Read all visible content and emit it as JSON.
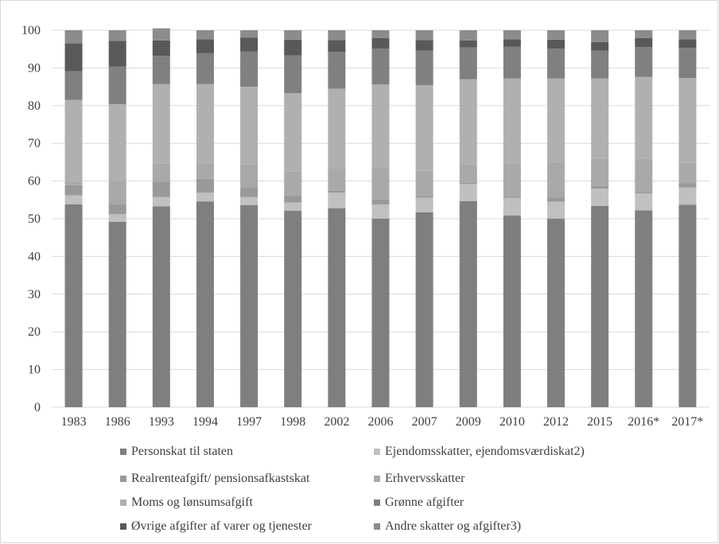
{
  "chart_data": {
    "type": "bar",
    "stacked": true,
    "categories": [
      "1983",
      "1986",
      "1993",
      "1994",
      "1997",
      "1998",
      "2002",
      "2006",
      "2007",
      "2009",
      "2010",
      "2012",
      "2015",
      "2016*",
      "2017*"
    ],
    "ylim": [
      0,
      100
    ],
    "yticks": [
      0,
      10,
      20,
      30,
      40,
      50,
      60,
      70,
      80,
      90,
      100
    ],
    "grid": true,
    "legend_position": "bottom",
    "series": [
      {
        "name": "Personskat til staten",
        "color": "#7f7f7f",
        "values": [
          53.8,
          49.2,
          53.3,
          54.6,
          53.6,
          52.1,
          52.8,
          50.0,
          51.7,
          54.7,
          50.9,
          50.0,
          53.4,
          52.2,
          53.7
        ]
      },
      {
        "name": "Ejendomsskatter, ejendomsværdiskat2)",
        "color": "#c0c0c0",
        "values": [
          2.4,
          2.0,
          2.5,
          2.3,
          2.2,
          2.2,
          4.1,
          3.8,
          3.9,
          4.5,
          4.6,
          4.5,
          4.6,
          4.5,
          4.6
        ]
      },
      {
        "name": "Realrenteafgift/ pensionsafkastskat",
        "color": "#999999",
        "values": [
          2.7,
          2.6,
          4.0,
          3.7,
          2.6,
          1.9,
          0.5,
          1.3,
          0.4,
          0.3,
          0.3,
          1.1,
          0.7,
          0.4,
          1.1
        ]
      },
      {
        "name": "Erhvervsskatter",
        "color": "#a9a9a9",
        "values": [
          0.9,
          6.2,
          4.8,
          4.1,
          6.0,
          6.3,
          5.9,
          8.3,
          6.7,
          5.0,
          8.9,
          9.4,
          7.2,
          8.8,
          5.4
        ]
      },
      {
        "name": "Moms og lønsumsafgift",
        "color": "#b0b0b0",
        "values": [
          21.7,
          20.4,
          21.1,
          21.0,
          20.6,
          20.8,
          21.2,
          22.2,
          22.7,
          22.5,
          22.5,
          22.2,
          21.3,
          21.7,
          22.5
        ]
      },
      {
        "name": "Grønne afgifter",
        "color": "#808080",
        "values": [
          7.6,
          10.0,
          7.5,
          8.2,
          9.4,
          10.0,
          9.8,
          9.5,
          9.2,
          8.4,
          8.4,
          7.9,
          7.4,
          7.9,
          8.0
        ]
      },
      {
        "name": "Øvrige afgifter af varer og tjenester",
        "color": "#595959",
        "values": [
          7.4,
          6.8,
          4.1,
          3.7,
          3.6,
          4.2,
          3.1,
          2.8,
          2.8,
          1.9,
          2.0,
          2.4,
          2.3,
          2.4,
          2.3
        ]
      },
      {
        "name": "Andre skatter og afgifter3)",
        "color": "#8c8c8c",
        "values": [
          3.5,
          2.8,
          3.2,
          2.4,
          2.0,
          2.5,
          2.6,
          2.1,
          2.6,
          2.7,
          2.4,
          2.5,
          3.1,
          2.1,
          2.4
        ]
      }
    ]
  }
}
